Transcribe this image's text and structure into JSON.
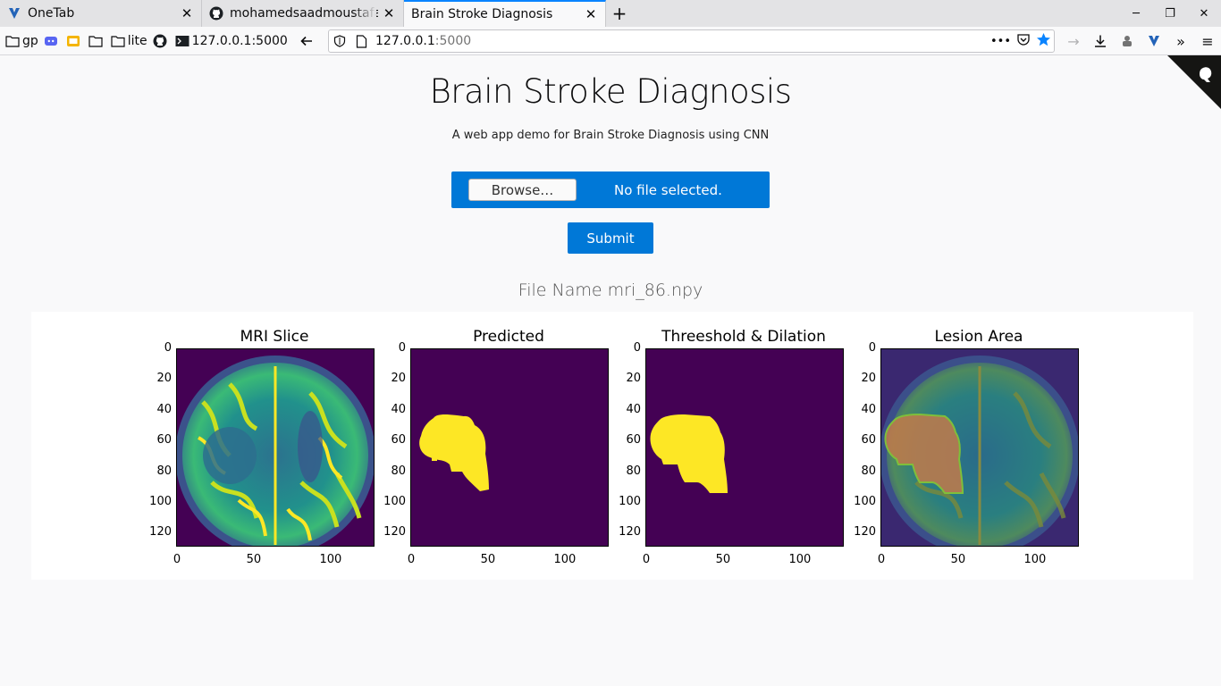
{
  "browser": {
    "tabs": [
      {
        "title": "OneTab",
        "active": false
      },
      {
        "title": "mohamedsaadmoustafa/",
        "active": false
      },
      {
        "title": "Brain Stroke Diagnosis",
        "active": true
      }
    ],
    "new_tab": "+",
    "bookmarks": [
      {
        "label": "gp",
        "icon": "folder-icon"
      },
      {
        "label": "",
        "icon": "discord-icon"
      },
      {
        "label": "",
        "icon": "slides-icon"
      },
      {
        "label": "",
        "icon": "folder-icon"
      },
      {
        "label": "lite",
        "icon": "folder-icon"
      },
      {
        "label": "",
        "icon": "github-icon"
      },
      {
        "label": "127.0.0.1:5000",
        "icon": "terminal-icon"
      }
    ],
    "url_host": "127.0.0.1",
    "url_port": ":5000",
    "url_more": "•••"
  },
  "page": {
    "title": "Brain Stroke Diagnosis",
    "subtitle": "A web app demo for Brain Stroke Diagnosis using CNN",
    "file_input": {
      "browse_label": "Browse…",
      "status": "No file selected."
    },
    "submit_label": "Submit",
    "file_name": "File Name mri_86.npy"
  },
  "panels": [
    {
      "title": "MRI Slice",
      "kind": "mri"
    },
    {
      "title": "Predicted",
      "kind": "mask-pred"
    },
    {
      "title": "Threeshold & Dilation",
      "kind": "mask-dilated"
    },
    {
      "title": "Lesion Area",
      "kind": "overlay"
    }
  ],
  "axes": {
    "y_ticks": [
      "0",
      "20",
      "40",
      "60",
      "80",
      "100",
      "120"
    ],
    "x_ticks": [
      "0",
      "50",
      "100"
    ],
    "y_range": [
      0,
      128
    ],
    "x_range": [
      0,
      128
    ]
  },
  "colors": {
    "accent": "#0078d7",
    "viridis_dark": "#440154",
    "viridis_yellow": "#fde725",
    "tab_highlight": "#0a84ff"
  }
}
